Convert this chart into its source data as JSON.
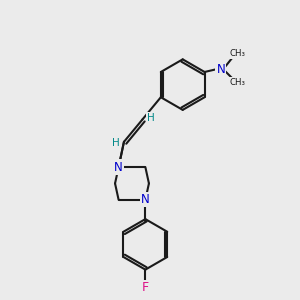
{
  "bg_color": "#ebebeb",
  "bond_color": "#1a1a1a",
  "N_color": "#0000cc",
  "F_color": "#dd1188",
  "H_color": "#008888",
  "lw": 1.5,
  "figsize": [
    3.0,
    3.0
  ],
  "dpi": 100,
  "xlim": [
    0,
    10
  ],
  "ylim": [
    0,
    10
  ]
}
